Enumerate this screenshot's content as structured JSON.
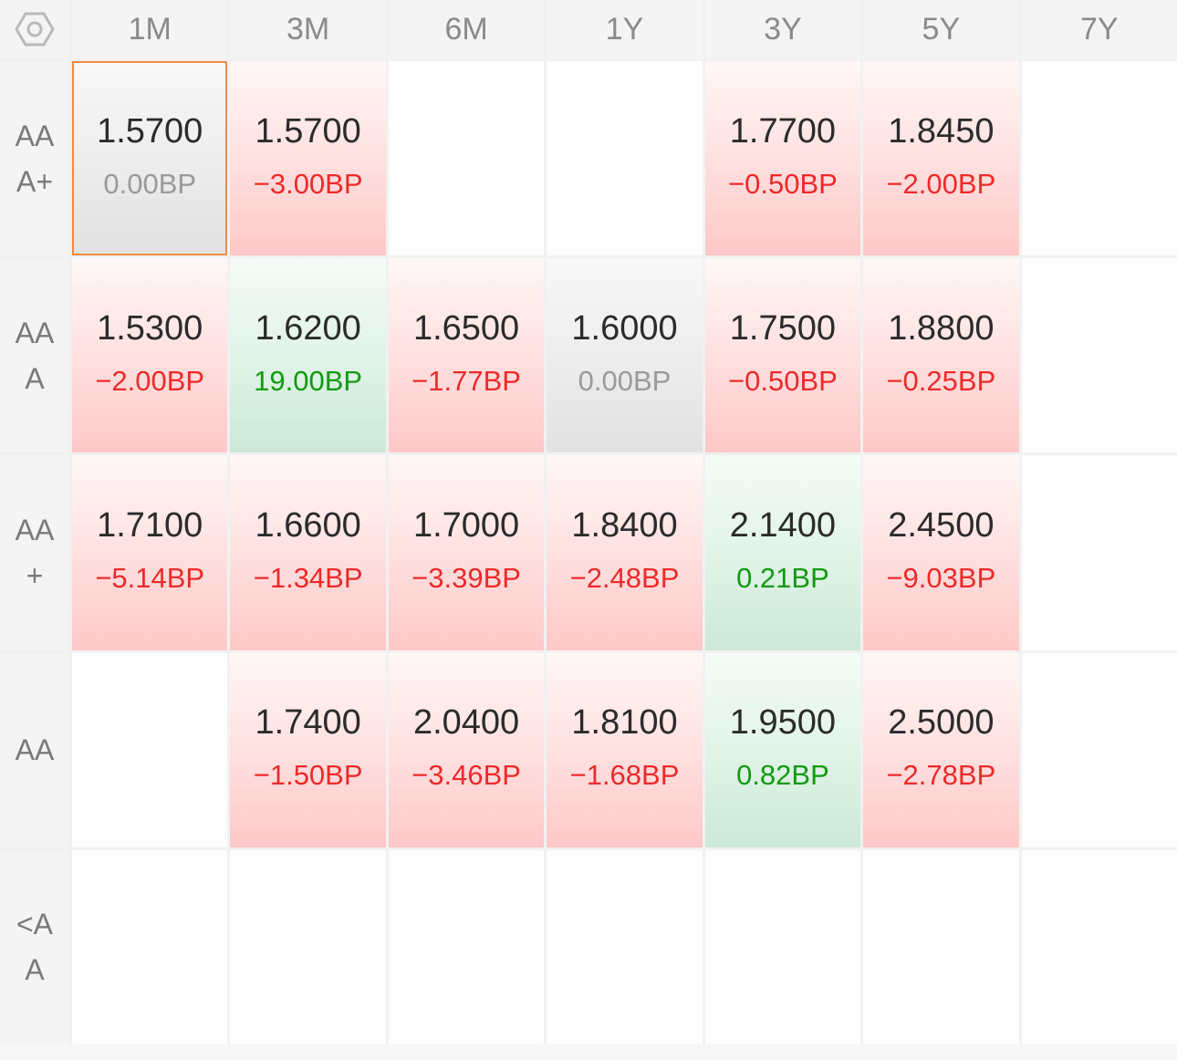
{
  "settings_icon": "settings-hexagon-icon",
  "columns": [
    "1M",
    "3M",
    "6M",
    "1Y",
    "3Y",
    "5Y",
    "7Y"
  ],
  "rows": [
    {
      "label_lines": [
        "AA",
        "A+"
      ],
      "cells": [
        {
          "rate": "1.5700",
          "change": "0.00BP",
          "dir": "flat",
          "selected": true
        },
        {
          "rate": "1.5700",
          "change": "−3.00BP",
          "dir": "down"
        },
        null,
        null,
        {
          "rate": "1.7700",
          "change": "−0.50BP",
          "dir": "down"
        },
        {
          "rate": "1.8450",
          "change": "−2.00BP",
          "dir": "down"
        },
        null
      ]
    },
    {
      "label_lines": [
        "AA",
        "A"
      ],
      "cells": [
        {
          "rate": "1.5300",
          "change": "−2.00BP",
          "dir": "down"
        },
        {
          "rate": "1.6200",
          "change": "19.00BP",
          "dir": "up"
        },
        {
          "rate": "1.6500",
          "change": "−1.77BP",
          "dir": "down"
        },
        {
          "rate": "1.6000",
          "change": "0.00BP",
          "dir": "flat"
        },
        {
          "rate": "1.7500",
          "change": "−0.50BP",
          "dir": "down"
        },
        {
          "rate": "1.8800",
          "change": "−0.25BP",
          "dir": "down"
        },
        null
      ]
    },
    {
      "label_lines": [
        "AA",
        "+"
      ],
      "cells": [
        {
          "rate": "1.7100",
          "change": "−5.14BP",
          "dir": "down"
        },
        {
          "rate": "1.6600",
          "change": "−1.34BP",
          "dir": "down"
        },
        {
          "rate": "1.7000",
          "change": "−3.39BP",
          "dir": "down"
        },
        {
          "rate": "1.8400",
          "change": "−2.48BP",
          "dir": "down"
        },
        {
          "rate": "2.1400",
          "change": "0.21BP",
          "dir": "up"
        },
        {
          "rate": "2.4500",
          "change": "−9.03BP",
          "dir": "down"
        },
        null
      ]
    },
    {
      "label_lines": [
        "AA",
        ""
      ],
      "cells": [
        null,
        {
          "rate": "1.7400",
          "change": "−1.50BP",
          "dir": "down"
        },
        {
          "rate": "2.0400",
          "change": "−3.46BP",
          "dir": "down"
        },
        {
          "rate": "1.8100",
          "change": "−1.68BP",
          "dir": "down"
        },
        {
          "rate": "1.9500",
          "change": "0.82BP",
          "dir": "up"
        },
        {
          "rate": "2.5000",
          "change": "−2.78BP",
          "dir": "down"
        },
        null
      ]
    },
    {
      "label_lines": [
        "<A",
        "A"
      ],
      "cells": [
        null,
        null,
        null,
        null,
        null,
        null,
        null
      ]
    }
  ],
  "colors": {
    "down_text": "#ee2a2a",
    "up_text": "#119a11",
    "flat_text": "#9a9a9a",
    "selected_border": "#f28b45"
  }
}
